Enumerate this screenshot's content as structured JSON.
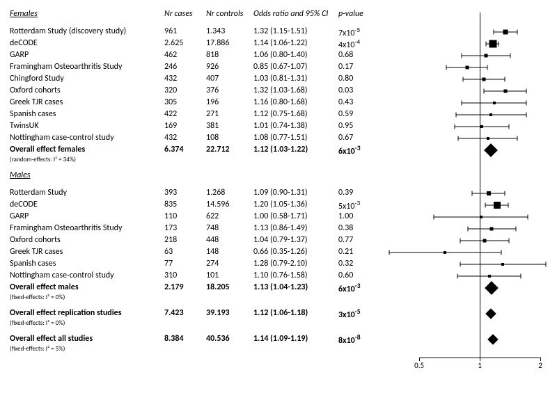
{
  "plot": {
    "widthPx": 250,
    "axisY": 502,
    "xmin": 0.3,
    "xmax": 2.2,
    "ticks": [
      0.5,
      1,
      2
    ],
    "line_ref": 1,
    "axis_color": "#000000",
    "background_color": "#ffffff",
    "marker_color": "#000000"
  },
  "headers": {
    "cases": "Nr cases",
    "controls": "Nr controls",
    "or": "Odds ratio and 95% CI",
    "p": "p-value"
  },
  "sections": [
    {
      "title": "Females",
      "rows": [
        {
          "study": "Rotterdam Study (discovery study)",
          "cases": "961",
          "controls": "1.343",
          "or_text": "1.32 (1.15-1.51)",
          "p_html": "7x10<sup>-5</sup>",
          "point": 1.32,
          "lo": 1.15,
          "hi": 1.51,
          "size": 7
        },
        {
          "study": "deCODE",
          "cases": "2.625",
          "controls": "17.886",
          "or_text": "1.14 (1.06-1.22)",
          "p_html": "4x10<sup>-4</sup>",
          "point": 1.14,
          "lo": 1.06,
          "hi": 1.22,
          "size": 11
        },
        {
          "study": "GARP",
          "cases": "462",
          "controls": "818",
          "or_text": "1.06 (0.80-1.40)",
          "p_html": "0.68",
          "point": 1.06,
          "lo": 0.8,
          "hi": 1.4,
          "size": 5
        },
        {
          "study": "Framingham Osteoarthritis Study",
          "cases": "246",
          "controls": "926",
          "or_text": "0.85 (0.67-1.07)",
          "p_html": "0.17",
          "point": 0.85,
          "lo": 0.67,
          "hi": 1.07,
          "size": 5
        },
        {
          "study": "Chingford Study",
          "cases": "432",
          "controls": "407",
          "or_text": "1.03 (0.81-1.31)",
          "p_html": "0.80",
          "point": 1.03,
          "lo": 0.81,
          "hi": 1.31,
          "size": 5
        },
        {
          "study": "Oxford cohorts",
          "cases": "320",
          "controls": "376",
          "or_text": "1.32 (1.03-1.68)",
          "p_html": "0.03",
          "point": 1.32,
          "lo": 1.03,
          "hi": 1.68,
          "size": 5
        },
        {
          "study": "Greek TJR cases",
          "cases": "305",
          "controls": "196",
          "or_text": "1.16 (0.80-1.68)",
          "p_html": "0.43",
          "point": 1.16,
          "lo": 0.8,
          "hi": 1.68,
          "size": 4
        },
        {
          "study": "Spanish cases",
          "cases": "422",
          "controls": "271",
          "or_text": "1.12 (0.75-1.68)",
          "p_html": "0.59",
          "point": 1.12,
          "lo": 0.75,
          "hi": 1.68,
          "size": 4
        },
        {
          "study": "TwinsUK",
          "cases": "169",
          "controls": "381",
          "or_text": "1.01 (0.74-1.38)",
          "p_html": "0.95",
          "point": 1.01,
          "lo": 0.74,
          "hi": 1.38,
          "size": 4
        },
        {
          "study": "Nottingham case-control study",
          "cases": "432",
          "controls": "108",
          "or_text": "1.08 (0.77-1.51)",
          "p_html": "0.67",
          "point": 1.08,
          "lo": 0.77,
          "hi": 1.51,
          "size": 4
        }
      ],
      "summaries": [
        {
          "study": "Overall effect females",
          "note": "(random-effects: I² = 34%)",
          "cases": "6.374",
          "controls": "22.712",
          "or_text": "1.12 (1.03-1.22)",
          "p_html": "6x10<sup>-3</sup>",
          "point": 1.12,
          "lo": 1.03,
          "hi": 1.22,
          "diamond": 14
        }
      ]
    },
    {
      "title": "Males",
      "rows": [
        {
          "study": "Rotterdam Study",
          "cases": "393",
          "controls": "1.268",
          "or_text": "1.09 (0.90-1.31)",
          "p_html": "0.39",
          "point": 1.09,
          "lo": 0.9,
          "hi": 1.31,
          "size": 6
        },
        {
          "study": "deCODE",
          "cases": "835",
          "controls": "14.596",
          "or_text": "1.20 (1.05-1.36)",
          "p_html": "5x10<sup>-3</sup>",
          "point": 1.2,
          "lo": 1.05,
          "hi": 1.36,
          "size": 10
        },
        {
          "study": "GARP",
          "cases": "110",
          "controls": "622",
          "or_text": "1.00 (0.58-1.71)",
          "p_html": "1.00",
          "point": 1.0,
          "lo": 0.58,
          "hi": 1.71,
          "size": 4
        },
        {
          "study": "Framingham Osteoarthritis Study",
          "cases": "173",
          "controls": "748",
          "or_text": "1.13 (0.86-1.49)",
          "p_html": "0.38",
          "point": 1.13,
          "lo": 0.86,
          "hi": 1.49,
          "size": 5
        },
        {
          "study": "Oxford cohorts",
          "cases": "218",
          "controls": "448",
          "or_text": "1.04 (0.79-1.37)",
          "p_html": "0.77",
          "point": 1.04,
          "lo": 0.79,
          "hi": 1.37,
          "size": 5
        },
        {
          "study": "Greek TJR cases",
          "cases": "63",
          "controls": "148",
          "or_text": "0.66 (0.35-1.26)",
          "p_html": "0.21",
          "point": 0.66,
          "lo": 0.35,
          "hi": 1.26,
          "size": 4
        },
        {
          "study": "Spanish cases",
          "cases": "77",
          "controls": "274",
          "or_text": "1.28 (0.79-2.10)",
          "p_html": "0.32",
          "point": 1.28,
          "lo": 0.79,
          "hi": 2.1,
          "size": 4
        },
        {
          "study": "Nottingham case-control study",
          "cases": "310",
          "controls": "101",
          "or_text": "1.10 (0.76-1.58)",
          "p_html": "0.60",
          "point": 1.1,
          "lo": 0.76,
          "hi": 1.58,
          "size": 4
        }
      ],
      "summaries": [
        {
          "study": "Overall effect males",
          "note": "(fixed-effects: I² = 0%)",
          "cases": "2.179",
          "controls": "18.205",
          "or_text": "1.13 (1.04-1.23)",
          "p_html": "6x10<sup>-3</sup>",
          "point": 1.13,
          "lo": 1.04,
          "hi": 1.23,
          "diamond": 14
        },
        {
          "study": "Overall effect replication studies",
          "note": "(fixed-effects: I² = 0%)",
          "cases": "7.423",
          "controls": "39.193",
          "or_text": "1.12 (1.06-1.18)",
          "p_html": "3x10<sup>-5</sup>",
          "point": 1.12,
          "lo": 1.06,
          "hi": 1.18,
          "diamond": 11,
          "gapBefore": true
        },
        {
          "study": "Overall effect all studies",
          "note": "(fixed-effects: I² = 5%)",
          "cases": "8.384",
          "controls": "40.536",
          "or_text": "1.14 (1.09-1.19)",
          "p_html": "8x10<sup>-8</sup>",
          "point": 1.14,
          "lo": 1.09,
          "hi": 1.19,
          "diamond": 11,
          "gapBefore": true
        }
      ]
    }
  ]
}
